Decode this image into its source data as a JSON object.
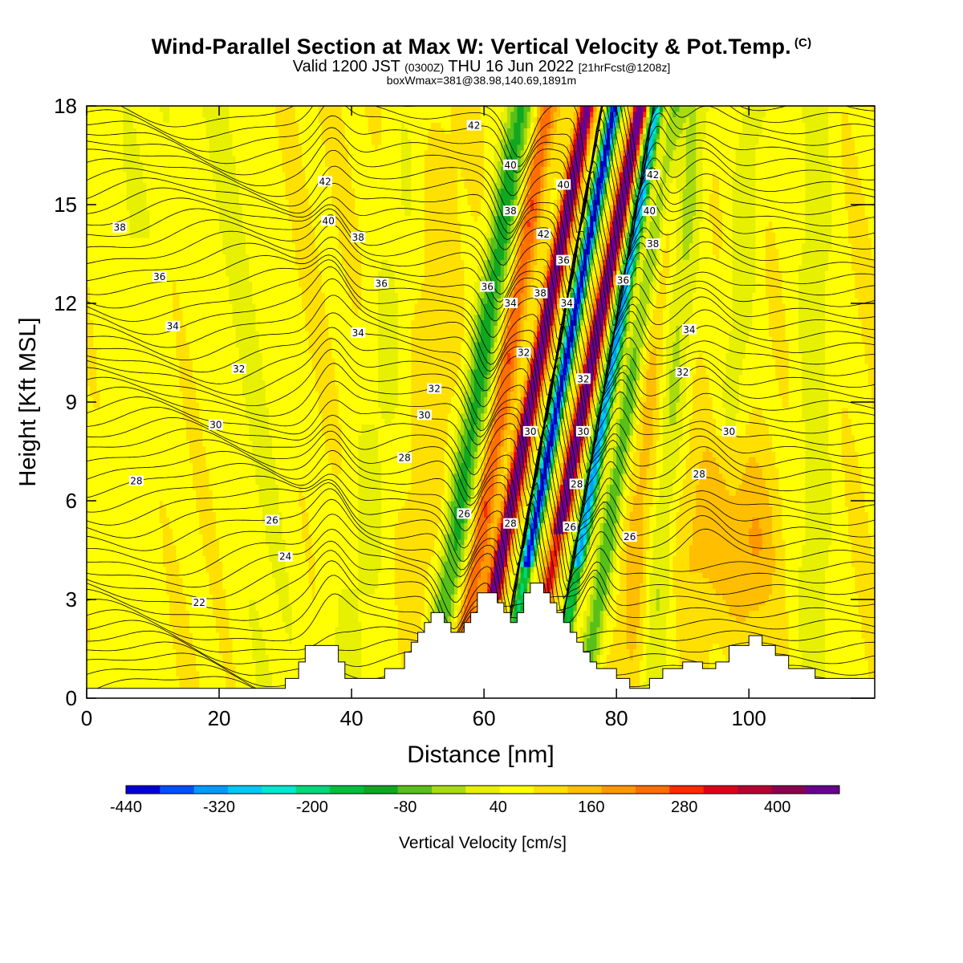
{
  "title": {
    "main": "Wind-Parallel Section at Max W: Vertical Velocity & Pot.Temp.",
    "copyright": "(C)",
    "valid_prefix": "Valid 1200 JST",
    "utc": "(0300Z)",
    "valid_date": "THU 16 Jun 2022",
    "forecast": "[21hrFcst@1208z]",
    "box_info": "boxWmax=381@38.98,140.69,1891m"
  },
  "chart_data": {
    "type": "heatmap",
    "xlabel": "Distance [nm]",
    "ylabel": "Height [Kft MSL]",
    "xlim": [
      0,
      119
    ],
    "ylim": [
      0,
      18
    ],
    "x_ticks": [
      0,
      20,
      40,
      60,
      80,
      100
    ],
    "y_ticks": [
      0,
      3,
      6,
      9,
      12,
      15,
      18
    ],
    "colorbar": {
      "label": "Vertical Velocity [cm/s]",
      "range": [
        -440,
        480
      ],
      "step": 40,
      "tick_labels": [
        -440,
        -320,
        -200,
        -80,
        40,
        160,
        280,
        400
      ],
      "colors": [
        "#0000d8",
        "#0050ff",
        "#009bff",
        "#00c8f5",
        "#00e8d0",
        "#00d778",
        "#00bf3c",
        "#10a820",
        "#58c018",
        "#a8dc10",
        "#e6f000",
        "#ffff00",
        "#ffe000",
        "#ffbe00",
        "#ff9800",
        "#ff6e00",
        "#ff2a00",
        "#e00018",
        "#b80030",
        "#8c0050",
        "#6a0090"
      ]
    },
    "updraft_core": {
      "max_cm_s": 381,
      "x_nm": 70,
      "top_kft": 18
    },
    "downdraft_core": {
      "min_cm_s": -440,
      "x_nm": 67,
      "top_kft": 18
    },
    "terrain_kft": [
      [
        0,
        0.3
      ],
      [
        30,
        0.3
      ],
      [
        30,
        0.6
      ],
      [
        32,
        0.6
      ],
      [
        32,
        1.1
      ],
      [
        33,
        1.1
      ],
      [
        33,
        1.6
      ],
      [
        38,
        1.6
      ],
      [
        38,
        1.1
      ],
      [
        39,
        1.1
      ],
      [
        39,
        0.6
      ],
      [
        45,
        0.6
      ],
      [
        45,
        0.9
      ],
      [
        48,
        0.9
      ],
      [
        48,
        1.4
      ],
      [
        49,
        1.4
      ],
      [
        49,
        1.7
      ],
      [
        50,
        1.7
      ],
      [
        50,
        2.0
      ],
      [
        51,
        2.0
      ],
      [
        51,
        2.3
      ],
      [
        52,
        2.3
      ],
      [
        52,
        2.6
      ],
      [
        54,
        2.6
      ],
      [
        54,
        2.3
      ],
      [
        55,
        2.3
      ],
      [
        55,
        2.0
      ],
      [
        57,
        2.0
      ],
      [
        57,
        2.3
      ],
      [
        58,
        2.3
      ],
      [
        58,
        2.6
      ],
      [
        59,
        2.6
      ],
      [
        59,
        3.2
      ],
      [
        62,
        3.2
      ],
      [
        62,
        2.9
      ],
      [
        63,
        2.9
      ],
      [
        63,
        2.6
      ],
      [
        64,
        2.6
      ],
      [
        64,
        2.3
      ],
      [
        65,
        2.3
      ],
      [
        65,
        2.6
      ],
      [
        66,
        2.6
      ],
      [
        66,
        3.2
      ],
      [
        67,
        3.2
      ],
      [
        67,
        3.5
      ],
      [
        69,
        3.5
      ],
      [
        69,
        3.2
      ],
      [
        70,
        3.2
      ],
      [
        70,
        2.9
      ],
      [
        71,
        2.9
      ],
      [
        71,
        2.6
      ],
      [
        72,
        2.6
      ],
      [
        72,
        2.3
      ],
      [
        73,
        2.3
      ],
      [
        73,
        2.0
      ],
      [
        74,
        2.0
      ],
      [
        74,
        1.7
      ],
      [
        75,
        1.7
      ],
      [
        75,
        1.4
      ],
      [
        76,
        1.4
      ],
      [
        76,
        1.1
      ],
      [
        77,
        1.1
      ],
      [
        77,
        0.9
      ],
      [
        80,
        0.9
      ],
      [
        80,
        0.6
      ],
      [
        82,
        0.6
      ],
      [
        82,
        0.3
      ],
      [
        85,
        0.3
      ],
      [
        85,
        0.6
      ],
      [
        87,
        0.6
      ],
      [
        87,
        0.9
      ],
      [
        90,
        0.9
      ],
      [
        90,
        1.1
      ],
      [
        93,
        1.1
      ],
      [
        93,
        0.9
      ],
      [
        95,
        0.9
      ],
      [
        95,
        1.1
      ],
      [
        97,
        1.1
      ],
      [
        97,
        1.6
      ],
      [
        100,
        1.6
      ],
      [
        100,
        1.9
      ],
      [
        102,
        1.9
      ],
      [
        102,
        1.6
      ],
      [
        104,
        1.6
      ],
      [
        104,
        1.3
      ],
      [
        106,
        1.3
      ],
      [
        106,
        0.9
      ],
      [
        110,
        0.9
      ],
      [
        110,
        0.6
      ],
      [
        119,
        0.6
      ],
      [
        119,
        0
      ]
    ],
    "isentropes_label_values": [
      22,
      24,
      26,
      28,
      30,
      32,
      34,
      36,
      38,
      40,
      42
    ],
    "contour_labels": [
      {
        "text": "42",
        "x": 36,
        "y": 15.7
      },
      {
        "text": "40",
        "x": 36.5,
        "y": 14.5
      },
      {
        "text": "38",
        "x": 41,
        "y": 14.0
      },
      {
        "text": "38",
        "x": 5,
        "y": 14.3
      },
      {
        "text": "36",
        "x": 11,
        "y": 12.8
      },
      {
        "text": "34",
        "x": 13,
        "y": 11.3
      },
      {
        "text": "32",
        "x": 23,
        "y": 10.0
      },
      {
        "text": "30",
        "x": 19.5,
        "y": 8.3
      },
      {
        "text": "28",
        "x": 7.5,
        "y": 6.6
      },
      {
        "text": "26",
        "x": 28,
        "y": 5.4
      },
      {
        "text": "24",
        "x": 30,
        "y": 4.3
      },
      {
        "text": "22",
        "x": 17,
        "y": 2.9
      },
      {
        "text": "36",
        "x": 44.5,
        "y": 12.6
      },
      {
        "text": "34",
        "x": 41,
        "y": 11.1
      },
      {
        "text": "32",
        "x": 52.5,
        "y": 9.4
      },
      {
        "text": "30",
        "x": 51,
        "y": 8.6
      },
      {
        "text": "28",
        "x": 48,
        "y": 7.3
      },
      {
        "text": "26",
        "x": 57,
        "y": 5.6
      },
      {
        "text": "42",
        "x": 58.5,
        "y": 17.4
      },
      {
        "text": "40",
        "x": 64,
        "y": 16.2
      },
      {
        "text": "38",
        "x": 64,
        "y": 14.8
      },
      {
        "text": "36",
        "x": 60.5,
        "y": 12.5
      },
      {
        "text": "34",
        "x": 64,
        "y": 12.0
      },
      {
        "text": "32",
        "x": 66,
        "y": 10.5
      },
      {
        "text": "30",
        "x": 67,
        "y": 8.1
      },
      {
        "text": "28",
        "x": 64,
        "y": 5.3
      },
      {
        "text": "42",
        "x": 69,
        "y": 14.1
      },
      {
        "text": "40",
        "x": 72,
        "y": 15.6
      },
      {
        "text": "38",
        "x": 68.5,
        "y": 12.3
      },
      {
        "text": "36",
        "x": 72,
        "y": 13.3
      },
      {
        "text": "34",
        "x": 72.5,
        "y": 12.0
      },
      {
        "text": "32",
        "x": 75,
        "y": 9.7
      },
      {
        "text": "30",
        "x": 75,
        "y": 8.1
      },
      {
        "text": "28",
        "x": 74,
        "y": 6.5
      },
      {
        "text": "26",
        "x": 73,
        "y": 5.2
      },
      {
        "text": "26",
        "x": 82,
        "y": 4.9
      },
      {
        "text": "42",
        "x": 85.5,
        "y": 15.9
      },
      {
        "text": "40",
        "x": 85,
        "y": 14.8
      },
      {
        "text": "38",
        "x": 85.5,
        "y": 13.8
      },
      {
        "text": "36",
        "x": 81,
        "y": 12.7
      },
      {
        "text": "34",
        "x": 91,
        "y": 11.2
      },
      {
        "text": "32",
        "x": 90,
        "y": 9.9
      },
      {
        "text": "30",
        "x": 97,
        "y": 8.1
      },
      {
        "text": "28",
        "x": 92.5,
        "y": 6.8
      }
    ]
  }
}
